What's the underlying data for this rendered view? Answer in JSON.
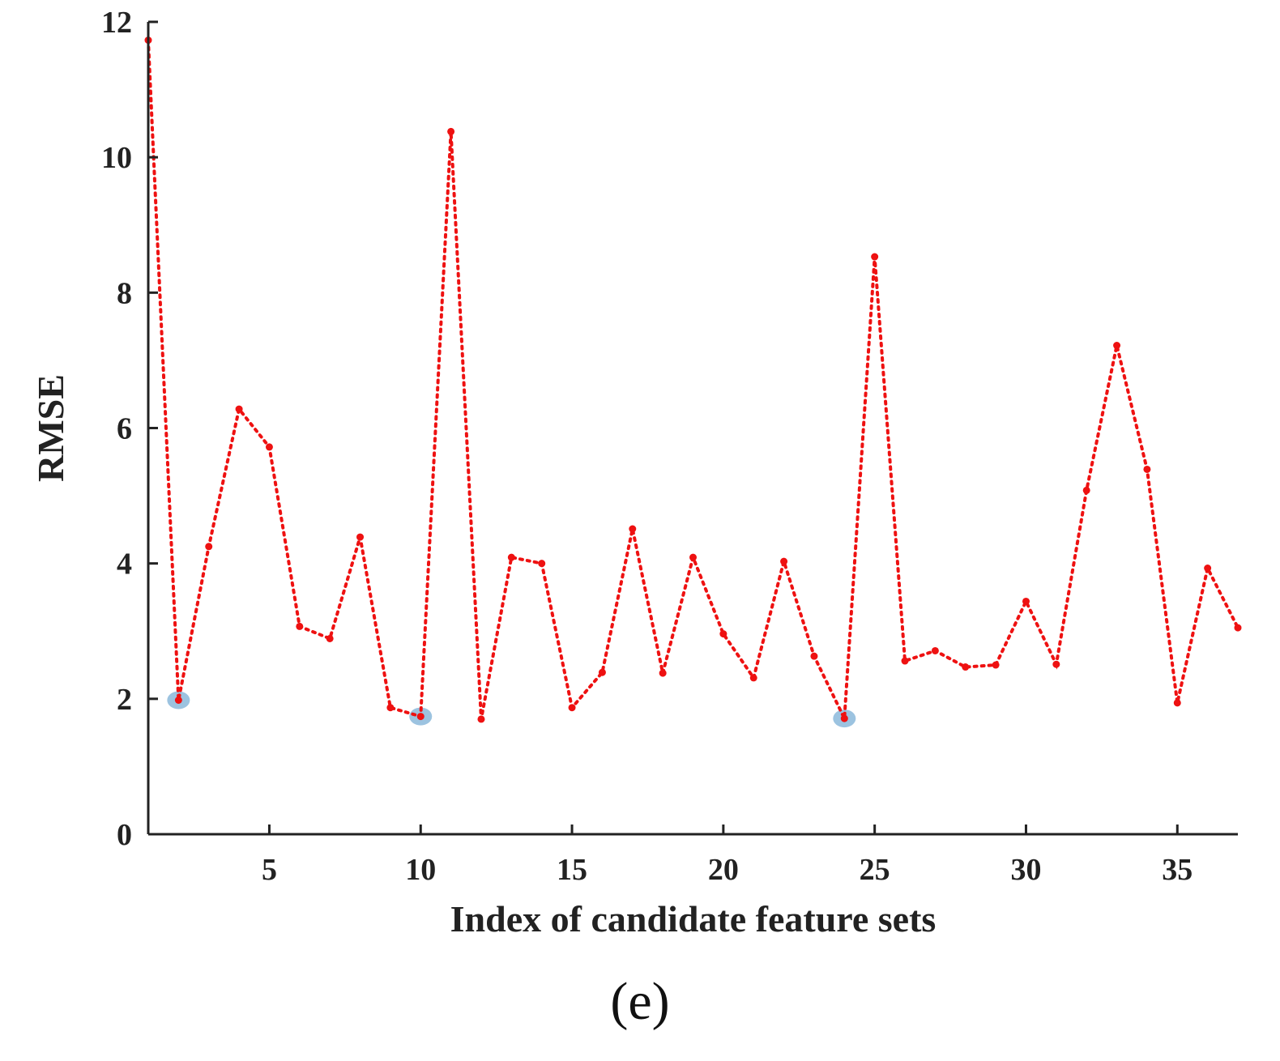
{
  "chart_data": {
    "type": "line",
    "title": "",
    "xlabel": "Index of candidate feature sets",
    "ylabel": "RMSE",
    "xlim": [
      1,
      37
    ],
    "ylim": [
      0,
      12
    ],
    "xticks": [
      5,
      10,
      15,
      20,
      25,
      30,
      35
    ],
    "yticks": [
      0,
      2,
      4,
      6,
      8,
      10,
      12
    ],
    "grid": false,
    "legend": "none",
    "panel_label": "(e)",
    "line_color": "#ee1111",
    "highlight_color": "#9cc3e0",
    "series": [
      {
        "x": [
          1,
          2,
          3,
          4,
          5,
          6,
          7,
          8,
          9,
          10,
          11,
          12,
          13,
          14,
          15,
          16,
          17,
          18,
          19,
          20,
          21,
          22,
          23,
          24,
          25,
          26,
          27,
          28,
          29,
          30,
          31,
          32,
          33,
          34,
          35,
          36,
          37
        ],
        "values": [
          11.73,
          1.98,
          4.25,
          6.28,
          5.72,
          3.07,
          2.89,
          4.39,
          1.87,
          1.74,
          10.38,
          1.7,
          4.09,
          4.0,
          1.87,
          2.39,
          4.51,
          2.38,
          4.09,
          2.96,
          2.31,
          4.03,
          2.63,
          1.71,
          8.53,
          2.56,
          2.71,
          2.47,
          2.5,
          3.44,
          2.51,
          5.08,
          7.22,
          5.39,
          1.94,
          3.93,
          3.05
        ]
      }
    ],
    "highlighted_points": [
      {
        "x": 2,
        "y": 1.98
      },
      {
        "x": 10,
        "y": 1.74
      },
      {
        "x": 24,
        "y": 1.71
      }
    ]
  }
}
